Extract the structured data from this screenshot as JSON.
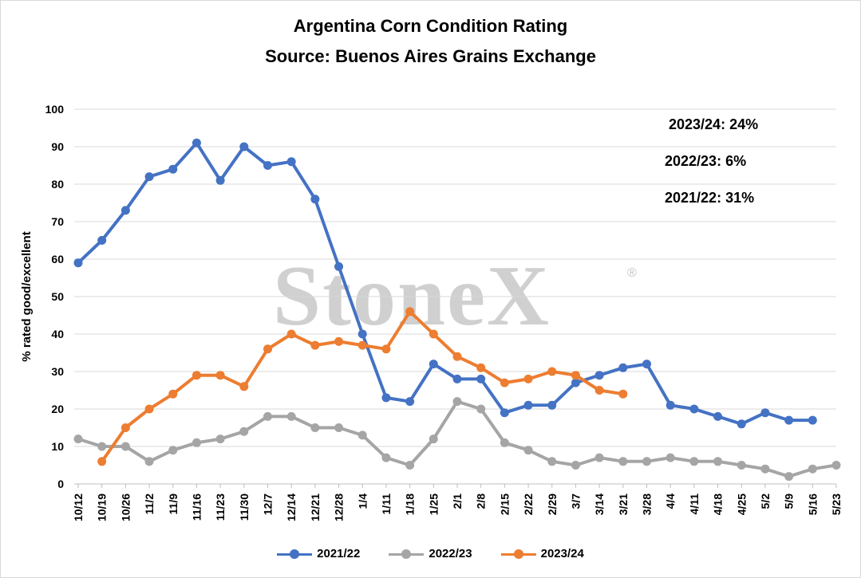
{
  "title_line1": "Argentina Corn Condition Rating",
  "title_line2": "Source: Buenos Aires Grains Exchange",
  "watermark": "StoneX",
  "watermark_mark": "®",
  "notes": [
    {
      "label": "2023/24:",
      "value": "24%"
    },
    {
      "label": "2022/23:",
      "value": "6%"
    },
    {
      "label": "2021/22:",
      "value": "31%"
    }
  ],
  "chart_data": {
    "type": "line",
    "ylabel": "% rated good/excellent",
    "ylim": [
      0,
      100
    ],
    "yticks": [
      0,
      10,
      20,
      30,
      40,
      50,
      60,
      70,
      80,
      90,
      100
    ],
    "grid": true,
    "legend_position": "bottom",
    "categories": [
      "10/12",
      "10/19",
      "10/26",
      "11/2",
      "11/9",
      "11/16",
      "11/23",
      "11/30",
      "12/7",
      "12/14",
      "12/21",
      "12/28",
      "1/4",
      "1/11",
      "1/18",
      "1/25",
      "2/1",
      "2/8",
      "2/15",
      "2/22",
      "2/29",
      "3/7",
      "3/14",
      "3/21",
      "3/28",
      "4/4",
      "4/11",
      "4/18",
      "4/25",
      "5/2",
      "5/9",
      "5/16",
      "5/23"
    ],
    "series": [
      {
        "name": "2021/22",
        "color": "#4472c4",
        "values": [
          59,
          65,
          73,
          82,
          84,
          91,
          81,
          90,
          85,
          86,
          76,
          58,
          40,
          23,
          22,
          32,
          28,
          28,
          19,
          21,
          21,
          27,
          29,
          31,
          32,
          21,
          20,
          18,
          16,
          19,
          17,
          17,
          null
        ]
      },
      {
        "name": "2022/23",
        "color": "#a5a5a5",
        "values": [
          12,
          10,
          10,
          6,
          9,
          11,
          12,
          14,
          18,
          18,
          15,
          15,
          13,
          7,
          5,
          12,
          22,
          20,
          11,
          9,
          6,
          5,
          7,
          6,
          6,
          7,
          6,
          6,
          5,
          4,
          2,
          4,
          5
        ]
      },
      {
        "name": "2023/24",
        "color": "#ed7d31",
        "values": [
          null,
          6,
          15,
          20,
          24,
          29,
          29,
          26,
          36,
          40,
          37,
          38,
          37,
          36,
          46,
          40,
          34,
          31,
          27,
          28,
          30,
          29,
          25,
          24,
          null,
          null,
          null,
          null,
          null,
          null,
          null,
          null,
          null
        ]
      }
    ]
  }
}
